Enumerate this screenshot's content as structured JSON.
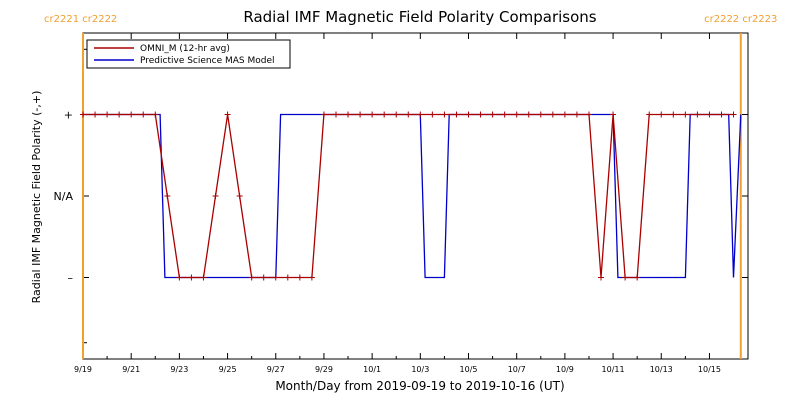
{
  "colors": {
    "omni": "#aa0000",
    "model": "#0000cc",
    "carrington": "#f0a030",
    "axes": "#000000"
  },
  "chart_data": {
    "type": "line",
    "title": "Radial IMF Magnetic Field Polarity Comparisons",
    "xlabel": "Month/Day from 2019-09-19 to 2019-10-16 (UT)",
    "ylabel": "Radial IMF Magnetic Field Polarity (-,+)",
    "xlim": [
      0,
      27.6
    ],
    "ylim": [
      -2,
      2
    ],
    "x_ticks": [
      {
        "x": 0,
        "label": "9/19"
      },
      {
        "x": 2,
        "label": "9/21"
      },
      {
        "x": 4,
        "label": "9/23"
      },
      {
        "x": 6,
        "label": "9/25"
      },
      {
        "x": 8,
        "label": "9/27"
      },
      {
        "x": 10,
        "label": "9/29"
      },
      {
        "x": 12,
        "label": "10/1"
      },
      {
        "x": 14,
        "label": "10/3"
      },
      {
        "x": 16,
        "label": "10/5"
      },
      {
        "x": 18,
        "label": "10/7"
      },
      {
        "x": 20,
        "label": "10/9"
      },
      {
        "x": 22,
        "label": "10/11"
      },
      {
        "x": 24,
        "label": "10/13"
      },
      {
        "x": 26,
        "label": "10/15"
      }
    ],
    "y_ticks": [
      {
        "y": 1,
        "label": "+"
      },
      {
        "y": 0,
        "label": "N/A"
      },
      {
        "y": -1,
        "label": "–"
      }
    ],
    "carrington_markers": [
      {
        "x": 0,
        "label": "cr2221 cr2222",
        "side": "left"
      },
      {
        "x": 27.3,
        "label": "cr2222 cr2223",
        "side": "right"
      }
    ],
    "legend": {
      "placement": "top-left",
      "entries": [
        "OMNI_M (12-hr avg)",
        "Predictive Science MAS Model"
      ]
    },
    "series": [
      {
        "name": "OMNI_M (12-hr avg)",
        "x": [
          0,
          0.5,
          1,
          1.5,
          2,
          2.5,
          3,
          3.5,
          4,
          4.5,
          5,
          5.5,
          6,
          6.5,
          7,
          7.5,
          8,
          8.5,
          9,
          9.5,
          10,
          10.5,
          11,
          11.5,
          12,
          12.5,
          13,
          13.5,
          14,
          14.5,
          15,
          15.5,
          16,
          16.5,
          17,
          17.5,
          18,
          18.5,
          19,
          19.5,
          20,
          20.5,
          21,
          21.5,
          22,
          22.5,
          23,
          23.5,
          24,
          24.5,
          25,
          25.5,
          26,
          26.5,
          27
        ],
        "y": [
          1,
          1,
          1,
          1,
          1,
          1,
          1,
          0,
          -1,
          -1,
          -1,
          0,
          1,
          0,
          -1,
          -1,
          -1,
          -1,
          -1,
          -1,
          1,
          1,
          1,
          1,
          1,
          1,
          1,
          1,
          1,
          1,
          1,
          1,
          1,
          1,
          1,
          1,
          1,
          1,
          1,
          1,
          1,
          1,
          1,
          -1,
          1,
          -1,
          -1,
          1,
          1,
          1,
          1,
          1,
          1,
          1,
          1
        ]
      },
      {
        "name": "Predictive Science MAS Model",
        "x": [
          0,
          3.2,
          3.4,
          8.0,
          8.2,
          14.0,
          14.2,
          15.0,
          15.2,
          18.0,
          18.2,
          22.0,
          22.2,
          25.0,
          25.2,
          26.8,
          27.0,
          27.3
        ],
        "y": [
          1,
          1,
          -1,
          -1,
          1,
          1,
          -1,
          -1,
          1,
          1,
          1,
          1,
          -1,
          -1,
          1,
          1,
          -1,
          1
        ]
      }
    ]
  }
}
